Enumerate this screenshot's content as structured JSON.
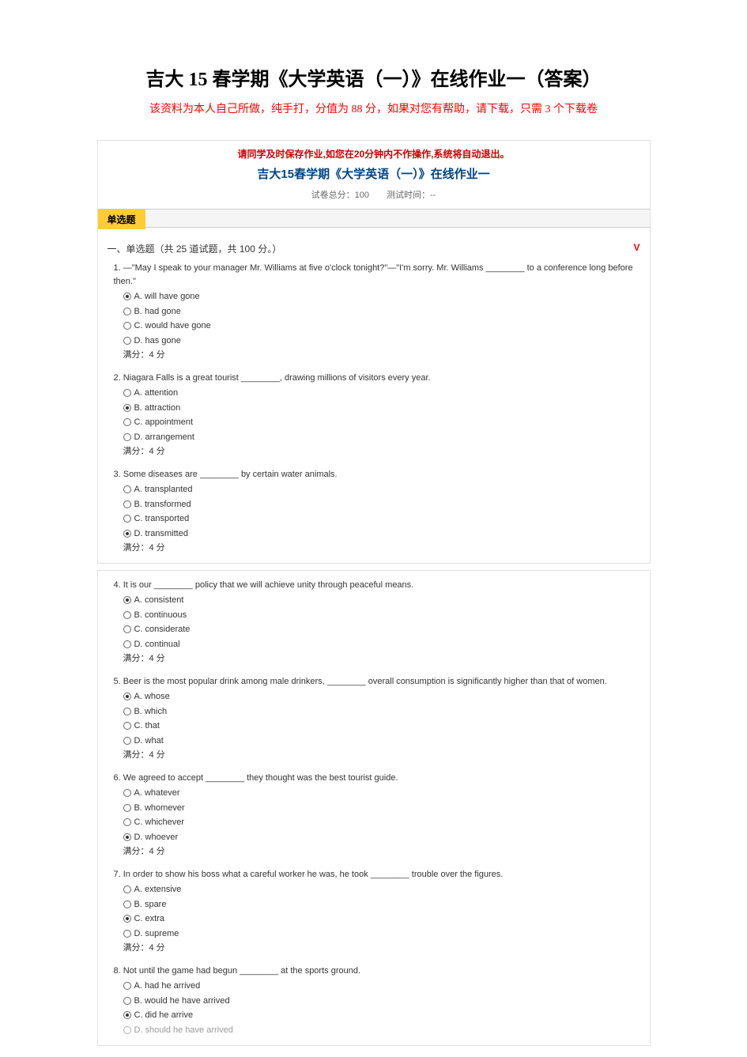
{
  "page_title": "吉大 15 春学期《大学英语（一）》在线作业一（答案）",
  "subtitle": "该资料为本人自己所做，纯手打，分值为 88 分，如果对您有帮助，请下载，只需 3 个下载卷",
  "quiz_notice": "请同学及时保存作业,如您在20分钟内不作操作,系统将自动退出。",
  "quiz_title": "吉大15春学期《大学英语（一）》在线作业一",
  "quiz_meta": "试卷总分：100　　测试时间：--",
  "tab_label": "单选题",
  "section_header": "一、单选题（共 25 道试题，共 100 分。）",
  "v_mark": "V",
  "score_label": "满分：4 分",
  "questions": [
    {
      "num": "1.",
      "text": "—\"May I speak to your manager Mr. Williams at five o'clock tonight?\"—\"I'm sorry. Mr. Williams ________ to a conference long before then.\"",
      "options": [
        "A. will have gone",
        "B. had gone",
        "C. would have gone",
        "D. has gone"
      ],
      "selected": 0
    },
    {
      "num": "2.",
      "text": "Niagara Falls is a great tourist ________, drawing millions of visitors every year.",
      "options": [
        "A. attention",
        "B. attraction",
        "C. appointment",
        "D. arrangement"
      ],
      "selected": 1
    },
    {
      "num": "3.",
      "text": "Some diseases are ________ by certain water animals.",
      "options": [
        "A. transplanted",
        "B. transformed",
        "C. transported",
        "D. transmitted"
      ],
      "selected": 3
    }
  ],
  "questions2": [
    {
      "num": "4.",
      "text": "It is our ________ policy that we will achieve unity through peaceful means.",
      "options": [
        "A. consistent",
        "B. continuous",
        "C. considerate",
        "D. continual"
      ],
      "selected": 0
    },
    {
      "num": "5.",
      "text": "Beer is the most popular drink among male drinkers, ________ overall consumption is significantly higher than that of women.",
      "options": [
        "A. whose",
        "B. which",
        "C. that",
        "D. what"
      ],
      "selected": 0
    },
    {
      "num": "6.",
      "text": "We agreed to accept ________ they thought was the best tourist guide.",
      "options": [
        "A. whatever",
        "B. whomever",
        "C. whichever",
        "D. whoever"
      ],
      "selected": 3
    },
    {
      "num": "7.",
      "text": "In order to show his boss what a careful worker he was, he took ________ trouble over the figures.",
      "options": [
        "A. extensive",
        "B. spare",
        "C. extra",
        "D. supreme"
      ],
      "selected": 2
    },
    {
      "num": "8.",
      "text": "Not until the game had begun ________ at the sports ground.",
      "options": [
        "A. had he arrived",
        "B. would he have arrived",
        "C. did he arrive",
        "D. should he have arrived"
      ],
      "selected": 2,
      "truncated": true
    }
  ]
}
